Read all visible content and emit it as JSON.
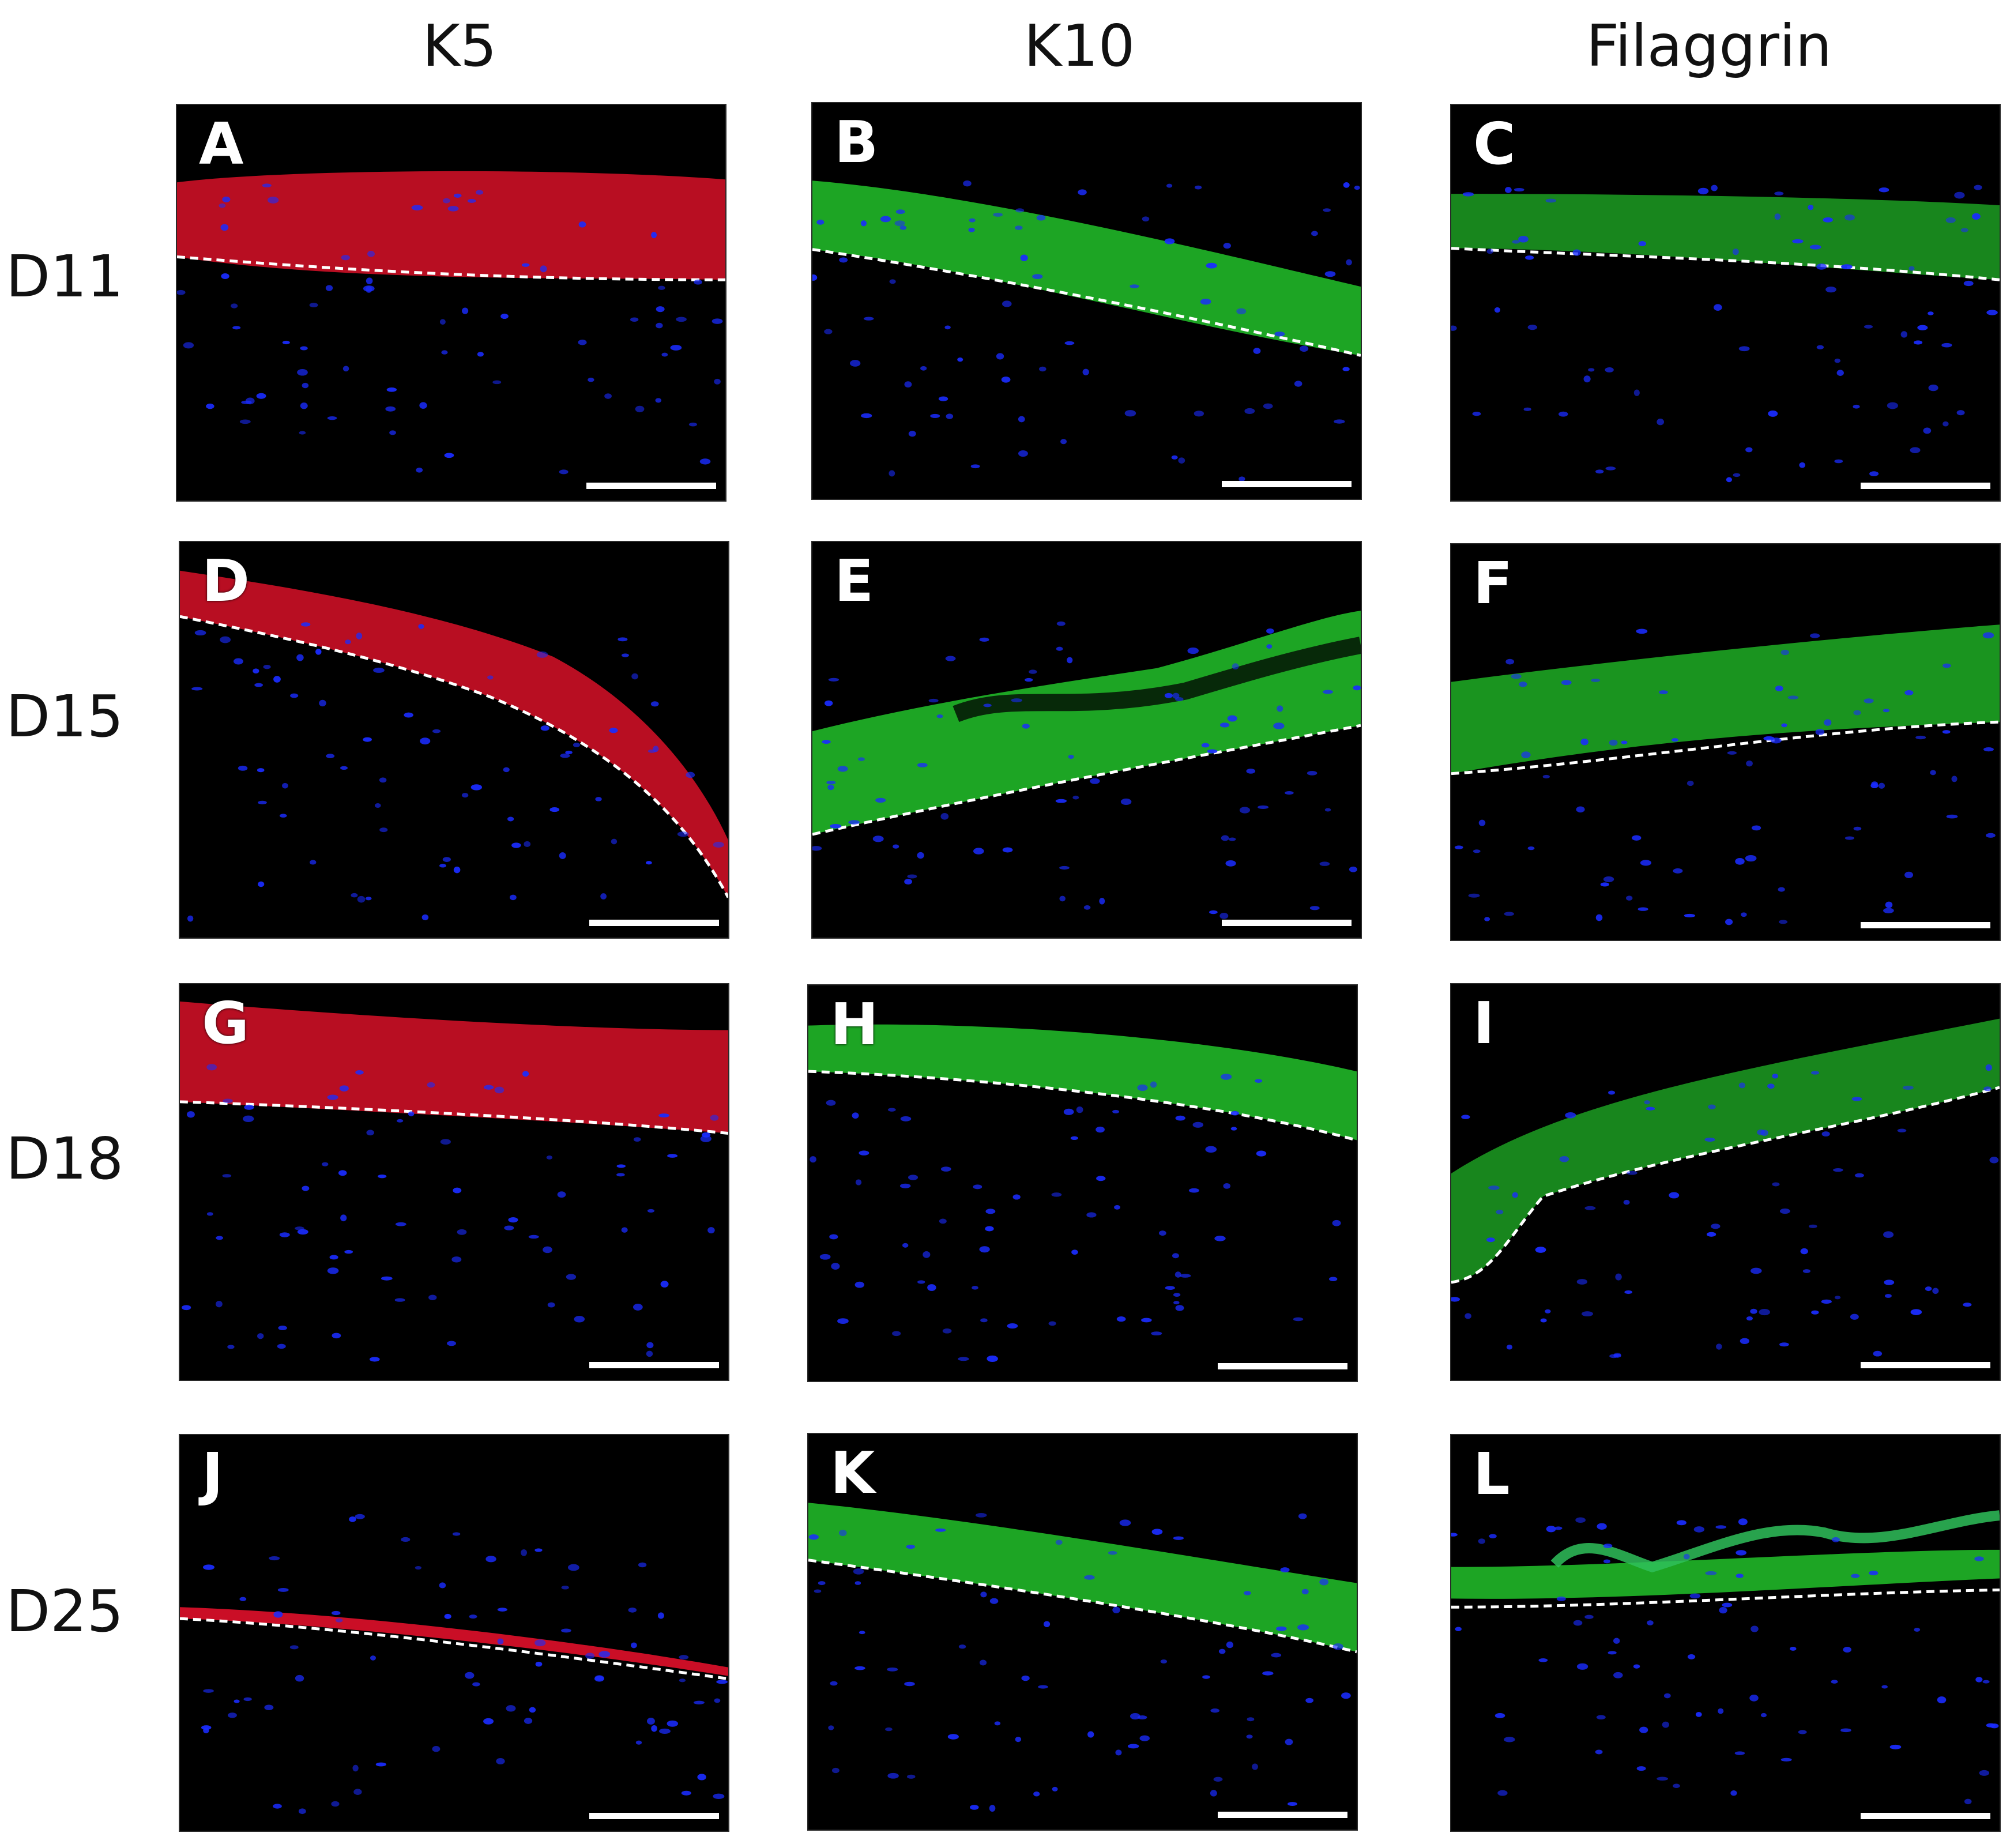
{
  "columns": [
    "K5",
    "K10",
    "Filaggrin"
  ],
  "rows": [
    "D11",
    "D15",
    "D18",
    "D25"
  ],
  "panels": [
    {
      "letter": "A",
      "row": "D11",
      "marker": "K5",
      "stain": "red"
    },
    {
      "letter": "B",
      "row": "D11",
      "marker": "K10",
      "stain": "green"
    },
    {
      "letter": "C",
      "row": "D11",
      "marker": "Filaggrin",
      "stain": "green"
    },
    {
      "letter": "D",
      "row": "D15",
      "marker": "K5",
      "stain": "red"
    },
    {
      "letter": "E",
      "row": "D15",
      "marker": "K10",
      "stain": "green"
    },
    {
      "letter": "F",
      "row": "D15",
      "marker": "Filaggrin",
      "stain": "green"
    },
    {
      "letter": "G",
      "row": "D18",
      "marker": "K5",
      "stain": "red"
    },
    {
      "letter": "H",
      "row": "D18",
      "marker": "K10",
      "stain": "green"
    },
    {
      "letter": "I",
      "row": "D18",
      "marker": "Filaggrin",
      "stain": "green"
    },
    {
      "letter": "J",
      "row": "D25",
      "marker": "K5",
      "stain": "red"
    },
    {
      "letter": "K",
      "row": "D25",
      "marker": "K10",
      "stain": "green"
    },
    {
      "letter": "L",
      "row": "D25",
      "marker": "Filaggrin",
      "stain": "green"
    }
  ],
  "colors": {
    "red_stain": "#e0102a",
    "green_stain": "#22c22a",
    "nuclei": "#1a2cff",
    "background": "#000000",
    "dashed_line": "#ffffff"
  }
}
